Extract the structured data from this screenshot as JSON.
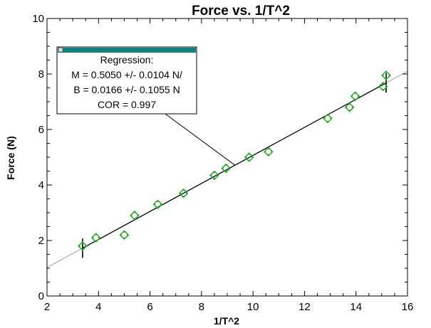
{
  "chart_data": {
    "type": "scatter",
    "title": "Force vs. 1/T^2",
    "xlabel": "1/T^2",
    "ylabel": "Force (N)",
    "xlim": [
      2,
      16
    ],
    "ylim": [
      0,
      10
    ],
    "x_ticks": [
      "2",
      "4",
      "6",
      "8",
      "10",
      "12",
      "14",
      "16"
    ],
    "y_ticks": [
      "0",
      "2",
      "4",
      "6",
      "8",
      "10"
    ],
    "grid": false,
    "series": [
      {
        "x": [
          3.38,
          3.9,
          5.0,
          5.4,
          6.3,
          7.3,
          8.5,
          8.95,
          9.85,
          10.6,
          12.9,
          13.75,
          13.97,
          15.05,
          15.17
        ],
        "y": [
          1.8,
          2.1,
          2.2,
          2.9,
          3.3,
          3.7,
          4.35,
          4.6,
          5.0,
          5.2,
          6.4,
          6.8,
          7.2,
          7.55,
          7.95
        ]
      }
    ],
    "regression": {
      "type": "linear",
      "slope": 0.505,
      "intercept": 0.0166
    },
    "error_bars_x": [
      3.38,
      15.17
    ],
    "annotation": {
      "title": "Regression:",
      "lines": [
        "M = 0.5050 +/- 0.0104 N/",
        "B = 0.0166 +/- 0.1055 N",
        "COR = 0.997"
      ]
    },
    "colors": {
      "marker": "#2ca02c",
      "fit_line": "#000000",
      "extended_line": "#a0a0a0",
      "box_titlebar": "#137f7f"
    }
  }
}
